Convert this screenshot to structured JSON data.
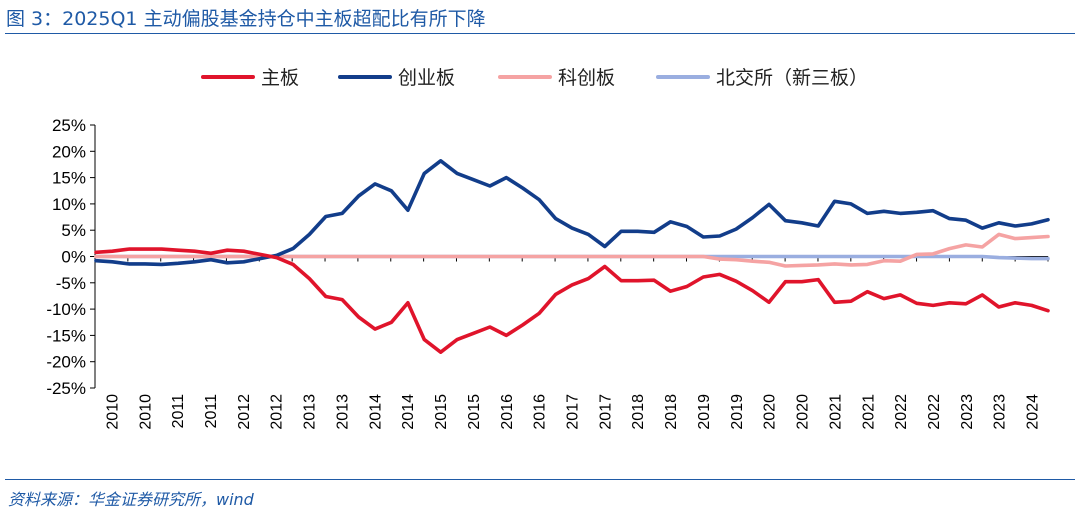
{
  "figure": {
    "title": "图 3：2025Q1 主动偏股基金持仓中主板超配比有所下降",
    "source": "资料来源：华金证券研究所，wind"
  },
  "chart_data": {
    "type": "line",
    "title": "",
    "xlabel": "",
    "ylabel": "",
    "ylim": [
      -25,
      25
    ],
    "y_ticks": [
      25,
      20,
      15,
      10,
      5,
      0,
      -5,
      -10,
      -15,
      -20,
      -25
    ],
    "y_tick_labels": [
      "25%",
      "20%",
      "15%",
      "10%",
      "5%",
      "0%",
      "-5%",
      "-10%",
      "-15%",
      "-20%",
      "-25%"
    ],
    "x_tick_labels": [
      "2010",
      "2010",
      "2011",
      "2011",
      "2012",
      "2012",
      "2013",
      "2013",
      "2014",
      "2014",
      "2015",
      "2015",
      "2016",
      "2016",
      "2017",
      "2017",
      "2018",
      "2018",
      "2019",
      "2019",
      "2020",
      "2020",
      "2021",
      "2021",
      "2022",
      "2022",
      "2023",
      "2023",
      "2024"
    ],
    "legend_position": "top",
    "grid": false,
    "series": [
      {
        "name": "主板",
        "color": "#e0142b",
        "values": [
          0.8,
          1.0,
          1.4,
          1.4,
          1.4,
          1.2,
          1.0,
          0.6,
          1.2,
          1.0,
          0.4,
          -0.2,
          -1.5,
          -4.2,
          -7.6,
          -8.2,
          -11.5,
          -13.8,
          -12.5,
          -8.8,
          -15.8,
          -18.2,
          -15.8,
          -14.6,
          -13.4,
          -15.0,
          -13.0,
          -10.8,
          -7.2,
          -5.4,
          -4.2,
          -1.9,
          -4.6,
          -4.6,
          -4.5,
          -6.6,
          -5.7,
          -3.9,
          -3.4,
          -4.7,
          -6.5,
          -8.7,
          -4.8,
          -4.8,
          -4.4,
          -8.7,
          -8.5,
          -6.7,
          -8.0,
          -7.3,
          -8.9,
          -9.3,
          -8.8,
          -9.0,
          -7.3,
          -9.6,
          -8.8,
          -9.3,
          -10.3
        ]
      },
      {
        "name": "创业板",
        "color": "#123d8a",
        "values": [
          -0.8,
          -1.0,
          -1.4,
          -1.4,
          -1.5,
          -1.3,
          -1.0,
          -0.6,
          -1.2,
          -1.0,
          -0.4,
          0.2,
          1.5,
          4.2,
          7.6,
          8.2,
          11.5,
          13.8,
          12.5,
          8.8,
          15.8,
          18.2,
          15.8,
          14.6,
          13.4,
          15.0,
          13.0,
          10.8,
          7.2,
          5.4,
          4.2,
          1.9,
          4.8,
          4.8,
          4.6,
          6.6,
          5.7,
          3.7,
          3.9,
          5.2,
          7.4,
          9.9,
          6.8,
          6.4,
          5.8,
          10.5,
          10.0,
          8.2,
          8.6,
          8.2,
          8.4,
          8.7,
          7.2,
          6.9,
          5.4,
          6.4,
          5.8,
          6.2,
          7.0
        ]
      },
      {
        "name": "科创板",
        "color": "#f5a3a3",
        "values": [
          0,
          0,
          0,
          0,
          0,
          0,
          0,
          0,
          0,
          0,
          0,
          0,
          0,
          0,
          0,
          0,
          0,
          0,
          0,
          0,
          0,
          0,
          0,
          0,
          0,
          0,
          0,
          0,
          0,
          0,
          0,
          0,
          0,
          0,
          0,
          0,
          0,
          0,
          -0.5,
          -0.6,
          -0.9,
          -1.1,
          -1.8,
          -1.7,
          -1.6,
          -1.4,
          -1.6,
          -1.5,
          -0.8,
          -0.9,
          0.4,
          0.5,
          1.5,
          2.2,
          1.8,
          4.2,
          3.4,
          3.6,
          3.8
        ]
      },
      {
        "name": "北交所（新三板）",
        "color": "#9aaee0",
        "values": [
          0,
          0,
          0,
          0,
          0,
          0,
          0,
          0,
          0,
          0,
          0,
          0,
          0,
          0,
          0,
          0,
          0,
          0,
          0,
          0,
          0,
          0,
          0,
          0,
          0,
          0,
          0,
          0,
          0,
          0,
          0,
          0,
          0,
          0,
          0,
          0,
          0,
          0,
          0,
          0,
          0,
          0,
          0,
          0,
          0,
          0,
          0,
          0,
          0,
          0,
          0,
          0,
          0,
          0,
          0,
          -0.2,
          -0.3,
          -0.4,
          -0.4
        ]
      }
    ]
  }
}
